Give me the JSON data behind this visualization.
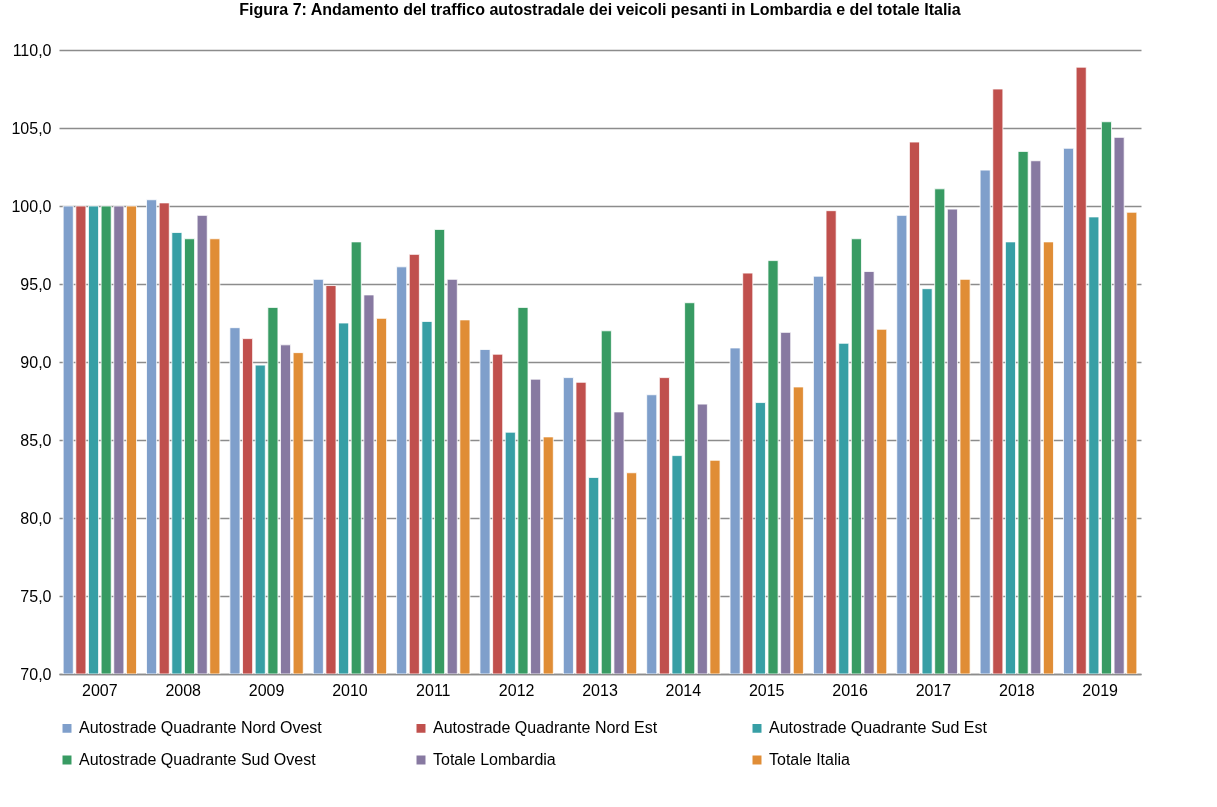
{
  "chart_data": {
    "type": "bar",
    "title": "Figura 7: Andamento del traffico autostradale dei veicoli pesanti in Lombardia e del totale Italia",
    "categories": [
      "2007",
      "2008",
      "2009",
      "2010",
      "2011",
      "2012",
      "2013",
      "2014",
      "2015",
      "2016",
      "2017",
      "2018",
      "2019"
    ],
    "series": [
      {
        "name": "Autostrade Quadrante Nord Ovest",
        "color": "#7f9fcb",
        "values": [
          100.0,
          100.4,
          92.2,
          95.3,
          96.1,
          90.8,
          89.0,
          87.9,
          90.9,
          95.5,
          99.4,
          102.3,
          103.7
        ]
      },
      {
        "name": "Autostrade Quadrante Nord Est",
        "color": "#c0504d",
        "values": [
          100.0,
          100.2,
          91.5,
          94.9,
          96.9,
          90.5,
          88.7,
          89.0,
          95.7,
          99.7,
          104.1,
          107.5,
          108.9
        ]
      },
      {
        "name": "Autostrade Quadrante Sud Est",
        "color": "#379fa5",
        "values": [
          100.0,
          98.3,
          89.8,
          92.5,
          92.6,
          85.5,
          82.6,
          84.0,
          87.4,
          91.2,
          94.7,
          97.7,
          99.3
        ]
      },
      {
        "name": "Autostrade Quadrante Sud Ovest",
        "color": "#389b63",
        "values": [
          100.0,
          97.9,
          93.5,
          97.7,
          98.5,
          93.5,
          92.0,
          93.8,
          96.5,
          97.9,
          101.1,
          103.5,
          105.4
        ]
      },
      {
        "name": "Totale Lombardia",
        "color": "#8779a1",
        "values": [
          100.0,
          99.4,
          91.1,
          94.3,
          95.3,
          88.9,
          86.8,
          87.3,
          91.9,
          95.8,
          99.8,
          102.9,
          104.4
        ]
      },
      {
        "name": "Totale Italia",
        "color": "#e08d36",
        "values": [
          100.0,
          97.9,
          90.6,
          92.8,
          92.7,
          85.2,
          82.9,
          83.7,
          88.4,
          92.1,
          95.3,
          97.7,
          99.6
        ]
      }
    ],
    "ylim": [
      70,
      110
    ],
    "yticks": [
      {
        "value": 70,
        "label": "70,0"
      },
      {
        "value": 75,
        "label": "75,0"
      },
      {
        "value": 80,
        "label": "80,0"
      },
      {
        "value": 85,
        "label": "85,0"
      },
      {
        "value": 90,
        "label": "90,0"
      },
      {
        "value": 95,
        "label": "95,0"
      },
      {
        "value": 100,
        "label": "100,0"
      },
      {
        "value": 105,
        "label": "105,0"
      },
      {
        "value": 110,
        "label": "110,0"
      }
    ],
    "grid": "y",
    "legend": "bottom"
  }
}
